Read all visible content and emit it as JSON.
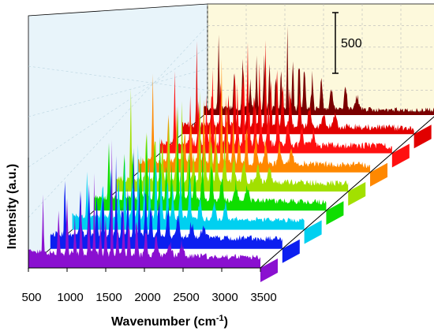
{
  "chart_data": {
    "type": "area",
    "view": "3d-waterfall",
    "xlabel": "Wavenumber (cm",
    "xlabel_sup": "-1",
    "xlabel_close": ")",
    "ylabel": "Intensity (a.u.)",
    "x_ticks": [
      "500",
      "1000",
      "1500",
      "2000",
      "2500",
      "3000",
      "3500"
    ],
    "xlim": [
      500,
      3500
    ],
    "scale_bar": {
      "label": "500",
      "value": 500
    },
    "grid": true,
    "wall_colors": {
      "back": "#fdf9dc",
      "side": "#e8f4fa",
      "floor": "#ffffff"
    },
    "peaks": [
      {
        "x": 690,
        "h": 560,
        "w": 8
      },
      {
        "x": 890,
        "h": 340,
        "w": 10
      },
      {
        "x": 1000,
        "h": 400,
        "w": 10
      },
      {
        "x": 1100,
        "h": 300,
        "w": 10
      },
      {
        "x": 1180,
        "h": 470,
        "w": 9
      },
      {
        "x": 1280,
        "h": 380,
        "w": 10
      },
      {
        "x": 1350,
        "h": 560,
        "w": 8
      },
      {
        "x": 1430,
        "h": 300,
        "w": 10
      },
      {
        "x": 1500,
        "h": 420,
        "w": 9
      },
      {
        "x": 1580,
        "h": 740,
        "w": 8
      },
      {
        "x": 1650,
        "h": 360,
        "w": 9
      },
      {
        "x": 1730,
        "h": 430,
        "w": 10
      },
      {
        "x": 1800,
        "h": 300,
        "w": 12
      },
      {
        "x": 1900,
        "h": 330,
        "w": 12
      },
      {
        "x": 2020,
        "h": 260,
        "w": 14
      },
      {
        "x": 2150,
        "h": 180,
        "w": 16
      },
      {
        "x": 2330,
        "h": 150,
        "w": 18
      },
      {
        "x": 2480,
        "h": 110,
        "w": 20
      }
    ],
    "series": [
      {
        "color": "#7a0000",
        "baseline": 60,
        "noise": 45,
        "amp": 0.95
      },
      {
        "color": "#e10000",
        "baseline": 80,
        "noise": 55,
        "amp": 0.95
      },
      {
        "color": "#ff1010",
        "baseline": 90,
        "noise": 60,
        "amp": 0.95
      },
      {
        "color": "#ff8800",
        "baseline": 95,
        "noise": 55,
        "amp": 0.95
      },
      {
        "color": "#a2e000",
        "baseline": 105,
        "noise": 50,
        "amp": 0.95
      },
      {
        "color": "#0fde00",
        "baseline": 110,
        "noise": 45,
        "amp": 0.95
      },
      {
        "color": "#00d0f0",
        "baseline": 115,
        "noise": 45,
        "amp": 0.95
      },
      {
        "color": "#0c1ff0",
        "baseline": 125,
        "noise": 50,
        "amp": 0.95
      },
      {
        "color": "#8a10d0",
        "baseline": 130,
        "noise": 50,
        "amp": 0.95
      }
    ]
  }
}
